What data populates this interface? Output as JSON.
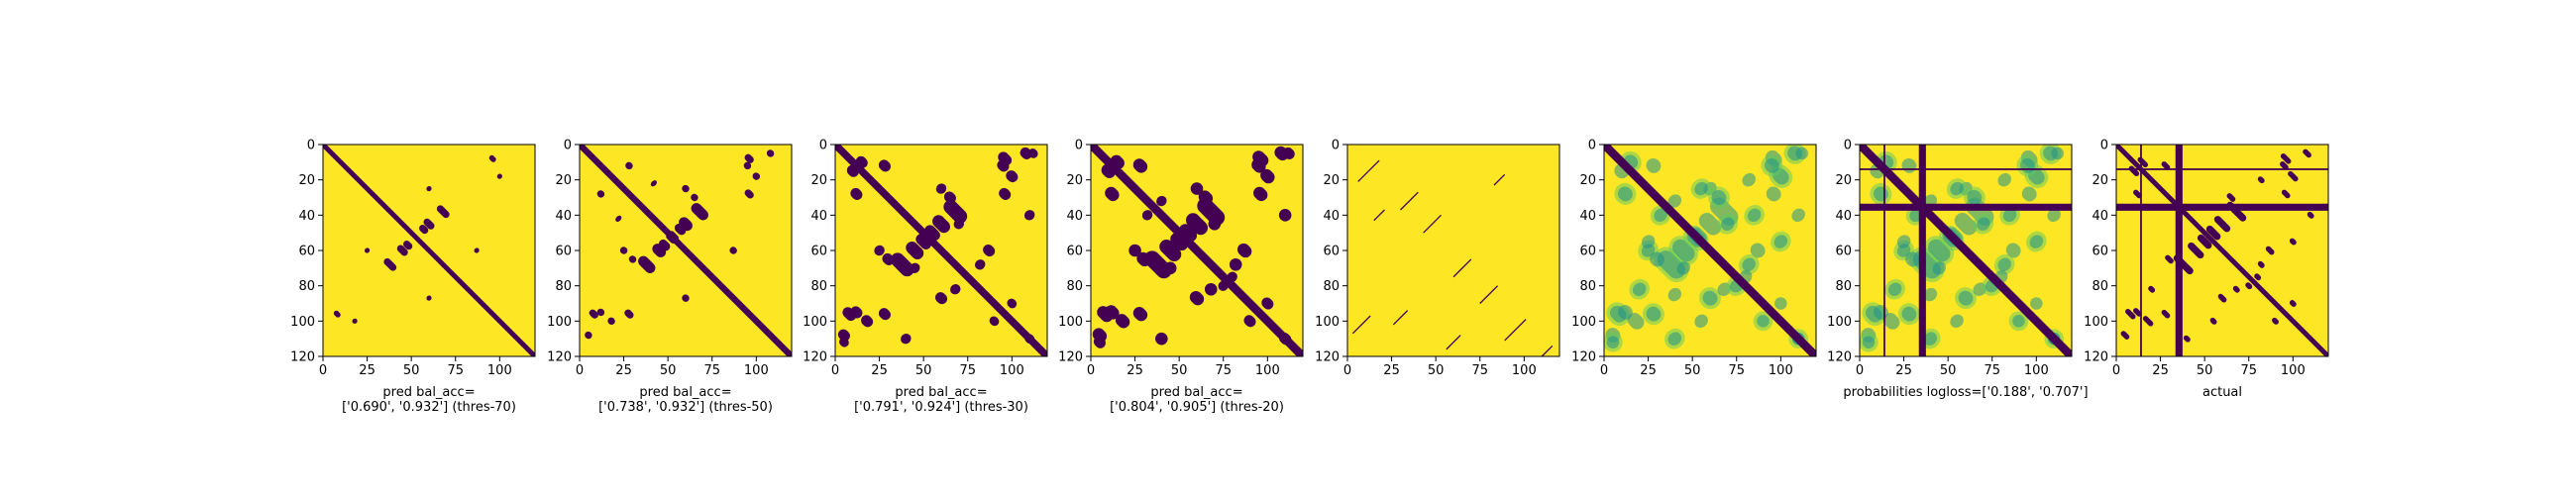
{
  "colors": {
    "background": "#fde725",
    "contact": "#440154",
    "mid_low": "#21918c",
    "mid_high": "#5ec962",
    "axis": "#000000"
  },
  "chart_data": [
    {
      "type": "heatmap",
      "kind": "binary",
      "title_lines": [
        "pred bal_acc=",
        "['0.690', '0.932'] (thres-70)"
      ],
      "xticks": [
        "0",
        "25",
        "50",
        "75",
        "100"
      ],
      "yticks": [
        "0",
        "20",
        "40",
        "60",
        "80",
        "100",
        "120"
      ],
      "xlim": [
        0,
        120
      ],
      "ylim": [
        0,
        120
      ],
      "matrix_size": 120,
      "diag_width": 2.3,
      "blobs": [
        [
          38,
          68,
          6,
          2
        ],
        [
          45,
          60,
          5,
          2
        ],
        [
          48,
          57,
          4,
          2
        ],
        [
          8,
          96,
          3,
          1.5
        ],
        [
          60,
          87,
          2,
          1.5
        ],
        [
          100,
          18,
          2,
          1.5
        ],
        [
          25,
          60,
          2,
          1.5
        ]
      ],
      "lines": []
    },
    {
      "type": "heatmap",
      "kind": "binary",
      "title_lines": [
        "pred bal_acc=",
        "['0.738', '0.932'] (thres-50)"
      ],
      "xticks": [
        "0",
        "25",
        "50",
        "75",
        "100"
      ],
      "yticks": [
        "0",
        "20",
        "40",
        "60",
        "80",
        "100",
        "120"
      ],
      "xlim": [
        0,
        120
      ],
      "ylim": [
        0,
        120
      ],
      "matrix_size": 120,
      "diag_width": 3,
      "blobs": [
        [
          38,
          68,
          8,
          3
        ],
        [
          45,
          60,
          6,
          3
        ],
        [
          48,
          57,
          5,
          2.5
        ],
        [
          53,
          52,
          5,
          2
        ],
        [
          8,
          96,
          4,
          2
        ],
        [
          28,
          96,
          4,
          2
        ],
        [
          60,
          87,
          3,
          2
        ],
        [
          100,
          18,
          3,
          2
        ],
        [
          25,
          60,
          3,
          2
        ],
        [
          12,
          28,
          3,
          2
        ],
        [
          95,
          12,
          3,
          2
        ],
        [
          108,
          5,
          3,
          2
        ],
        [
          65,
          30,
          3,
          2
        ],
        [
          42,
          22,
          2,
          2
        ]
      ],
      "lines": []
    },
    {
      "type": "heatmap",
      "kind": "binary",
      "title_lines": [
        "pred bal_acc=",
        "['0.791', '0.924'] (thres-30)"
      ],
      "xticks": [
        "0",
        "25",
        "50",
        "75",
        "100"
      ],
      "yticks": [
        "0",
        "20",
        "40",
        "60",
        "80",
        "100",
        "120"
      ],
      "xlim": [
        0,
        120
      ],
      "ylim": [
        0,
        120
      ],
      "matrix_size": 120,
      "diag_width": 3.5,
      "blobs": [
        [
          38,
          68,
          11,
          4
        ],
        [
          45,
          60,
          8,
          3.5
        ],
        [
          50,
          55,
          7,
          3
        ],
        [
          55,
          50,
          6,
          3
        ],
        [
          8,
          96,
          6,
          3
        ],
        [
          28,
          96,
          5,
          3
        ],
        [
          60,
          87,
          5,
          3
        ],
        [
          100,
          18,
          5,
          3
        ],
        [
          25,
          60,
          4,
          3
        ],
        [
          12,
          28,
          5,
          3
        ],
        [
          95,
          12,
          5,
          3
        ],
        [
          108,
          5,
          5,
          3
        ],
        [
          65,
          30,
          5,
          3
        ],
        [
          82,
          68,
          4,
          3
        ],
        [
          70,
          45,
          4,
          3
        ],
        [
          15,
          10,
          5,
          3
        ],
        [
          110,
          110,
          4,
          2.5
        ],
        [
          5,
          112,
          4,
          2.5
        ],
        [
          40,
          110,
          4,
          3
        ],
        [
          90,
          100,
          4,
          2.5
        ]
      ],
      "lines": []
    },
    {
      "type": "heatmap",
      "kind": "binary",
      "title_lines": [
        "pred bal_acc=",
        "['0.804', '0.905'] (thres-20)"
      ],
      "xticks": [
        "0",
        "25",
        "50",
        "75",
        "100"
      ],
      "yticks": [
        "0",
        "20",
        "40",
        "60",
        "80",
        "100",
        "120"
      ],
      "xlim": [
        0,
        120
      ],
      "ylim": [
        0,
        120
      ],
      "matrix_size": 120,
      "diag_width": 4,
      "blobs": [
        [
          38,
          68,
          13,
          4.5
        ],
        [
          45,
          60,
          10,
          4
        ],
        [
          50,
          55,
          8,
          3.5
        ],
        [
          55,
          50,
          7,
          3.5
        ],
        [
          8,
          96,
          7,
          3.5
        ],
        [
          28,
          96,
          6,
          3.5
        ],
        [
          60,
          87,
          6,
          3.5
        ],
        [
          100,
          18,
          6,
          3.5
        ],
        [
          25,
          60,
          5,
          3.5
        ],
        [
          12,
          28,
          6,
          3.5
        ],
        [
          95,
          12,
          6,
          3.5
        ],
        [
          108,
          5,
          6,
          3.5
        ],
        [
          65,
          30,
          6,
          3.5
        ],
        [
          82,
          68,
          5,
          3.5
        ],
        [
          70,
          45,
          5,
          3.5
        ],
        [
          15,
          10,
          6,
          3.5
        ],
        [
          110,
          110,
          5,
          3
        ],
        [
          5,
          112,
          5,
          3
        ],
        [
          40,
          110,
          5,
          3.5
        ],
        [
          90,
          100,
          5,
          3
        ],
        [
          75,
          80,
          4,
          3
        ],
        [
          32,
          40,
          4,
          3
        ]
      ],
      "lines": []
    },
    {
      "type": "heatmap",
      "kind": "binary",
      "title_lines": [],
      "xticks": [
        "0",
        "25",
        "50",
        "75",
        "100"
      ],
      "yticks": [
        "0",
        "20",
        "40",
        "60",
        "80",
        "100",
        "120"
      ],
      "xlim": [
        0,
        120
      ],
      "ylim": [
        0,
        120
      ],
      "matrix_size": 120,
      "diag_width": 0,
      "blobs": [],
      "lines": [
        [
          12,
          15,
          6
        ],
        [
          35,
          32,
          5
        ],
        [
          48,
          45,
          5
        ],
        [
          65,
          70,
          5
        ],
        [
          80,
          85,
          5
        ],
        [
          95,
          105,
          6
        ],
        [
          112,
          118,
          4
        ],
        [
          8,
          102,
          5
        ],
        [
          30,
          98,
          4
        ],
        [
          60,
          112,
          4
        ],
        [
          18,
          40,
          3
        ],
        [
          86,
          20,
          3
        ]
      ]
    },
    {
      "type": "heatmap",
      "kind": "probability",
      "title_lines": [],
      "xticks": [
        "0",
        "25",
        "50",
        "75",
        "100"
      ],
      "yticks": [
        "0",
        "20",
        "40",
        "60",
        "80",
        "100",
        "120"
      ],
      "xlim": [
        0,
        120
      ],
      "ylim": [
        0,
        120
      ],
      "matrix_size": 120,
      "diag_width": 4,
      "blobs": [
        [
          38,
          68,
          13,
          5
        ],
        [
          45,
          60,
          10,
          4.5
        ],
        [
          52,
          53,
          8,
          4
        ],
        [
          8,
          96,
          7,
          4
        ],
        [
          28,
          96,
          6,
          4
        ],
        [
          60,
          87,
          6,
          4
        ],
        [
          100,
          18,
          7,
          4
        ],
        [
          25,
          60,
          5,
          4
        ],
        [
          12,
          28,
          6,
          4
        ],
        [
          95,
          12,
          6,
          4
        ],
        [
          108,
          5,
          6,
          4
        ],
        [
          65,
          30,
          6,
          4
        ],
        [
          82,
          68,
          5,
          4
        ],
        [
          70,
          45,
          5,
          4
        ],
        [
          15,
          10,
          6,
          4
        ],
        [
          110,
          110,
          5,
          3.5
        ],
        [
          5,
          112,
          5,
          3.5
        ],
        [
          40,
          110,
          5,
          4
        ],
        [
          90,
          100,
          5,
          3.5
        ],
        [
          75,
          80,
          5,
          4
        ],
        [
          32,
          40,
          5,
          4
        ],
        [
          20,
          82,
          5,
          4
        ],
        [
          100,
          55,
          5,
          4
        ],
        [
          55,
          25,
          5,
          4
        ],
        [
          85,
          40,
          5,
          4
        ]
      ],
      "lines": []
    },
    {
      "type": "heatmap",
      "kind": "probability",
      "title_lines": [
        "probabilities logloss=['0.188', '0.707']"
      ],
      "xticks": [
        "0",
        "25",
        "50",
        "75",
        "100"
      ],
      "yticks": [
        "0",
        "20",
        "40",
        "60",
        "80",
        "100",
        "120"
      ],
      "xlim": [
        0,
        120
      ],
      "ylim": [
        0,
        120
      ],
      "matrix_size": 120,
      "diag_width": 4,
      "blobs": [
        [
          38,
          68,
          13,
          5
        ],
        [
          45,
          60,
          10,
          4.5
        ],
        [
          52,
          53,
          8,
          4
        ],
        [
          8,
          96,
          7,
          4
        ],
        [
          28,
          96,
          6,
          4
        ],
        [
          60,
          87,
          6,
          4
        ],
        [
          100,
          18,
          7,
          4
        ],
        [
          25,
          60,
          5,
          4
        ],
        [
          12,
          28,
          6,
          4
        ],
        [
          95,
          12,
          6,
          4
        ],
        [
          108,
          5,
          6,
          4
        ],
        [
          65,
          30,
          6,
          4
        ],
        [
          82,
          68,
          5,
          4
        ],
        [
          70,
          45,
          5,
          4
        ],
        [
          15,
          10,
          6,
          4
        ],
        [
          110,
          110,
          5,
          3.5
        ],
        [
          5,
          112,
          5,
          3.5
        ],
        [
          40,
          110,
          5,
          4
        ],
        [
          90,
          100,
          5,
          3.5
        ],
        [
          75,
          80,
          5,
          4
        ],
        [
          32,
          40,
          5,
          4
        ],
        [
          20,
          82,
          5,
          4
        ],
        [
          100,
          55,
          5,
          4
        ],
        [
          55,
          25,
          5,
          4
        ],
        [
          85,
          40,
          5,
          4
        ]
      ],
      "lines": [],
      "bands": [
        {
          "axis": "h",
          "pos": 35.5,
          "width": 4
        },
        {
          "axis": "v",
          "pos": 35.5,
          "width": 4
        },
        {
          "axis": "h",
          "pos": 14,
          "width": 1
        },
        {
          "axis": "v",
          "pos": 14,
          "width": 1
        }
      ]
    },
    {
      "type": "heatmap",
      "kind": "binary",
      "title_lines": [
        "actual"
      ],
      "xticks": [
        "0",
        "25",
        "50",
        "75",
        "100"
      ],
      "yticks": [
        "0",
        "20",
        "40",
        "60",
        "80",
        "100",
        "120"
      ],
      "xlim": [
        0,
        120
      ],
      "ylim": [
        0,
        120
      ],
      "matrix_size": 120,
      "diag_width": 2.3,
      "blobs": [
        [
          38,
          68,
          10,
          2
        ],
        [
          45,
          60,
          8,
          2
        ],
        [
          50,
          55,
          7,
          2
        ],
        [
          8,
          96,
          5,
          1.5
        ],
        [
          28,
          96,
          4,
          1.5
        ],
        [
          60,
          87,
          4,
          1.5
        ],
        [
          100,
          18,
          5,
          1.5
        ],
        [
          12,
          28,
          4,
          1.5
        ],
        [
          95,
          12,
          4,
          1.5
        ],
        [
          108,
          5,
          4,
          1.5
        ],
        [
          65,
          30,
          4,
          1.5
        ],
        [
          82,
          68,
          3,
          1.5
        ],
        [
          15,
          10,
          5,
          1.5
        ],
        [
          40,
          110,
          3,
          1.5
        ],
        [
          90,
          100,
          3,
          1.5
        ],
        [
          75,
          80,
          3,
          1.5
        ],
        [
          20,
          82,
          3,
          1.5
        ],
        [
          100,
          55,
          3,
          1.5
        ]
      ],
      "lines": [],
      "bands": [
        {
          "axis": "h",
          "pos": 35.5,
          "width": 4
        },
        {
          "axis": "v",
          "pos": 35.5,
          "width": 4
        },
        {
          "axis": "h",
          "pos": 14,
          "width": 1
        },
        {
          "axis": "v",
          "pos": 14,
          "width": 1
        }
      ]
    }
  ]
}
